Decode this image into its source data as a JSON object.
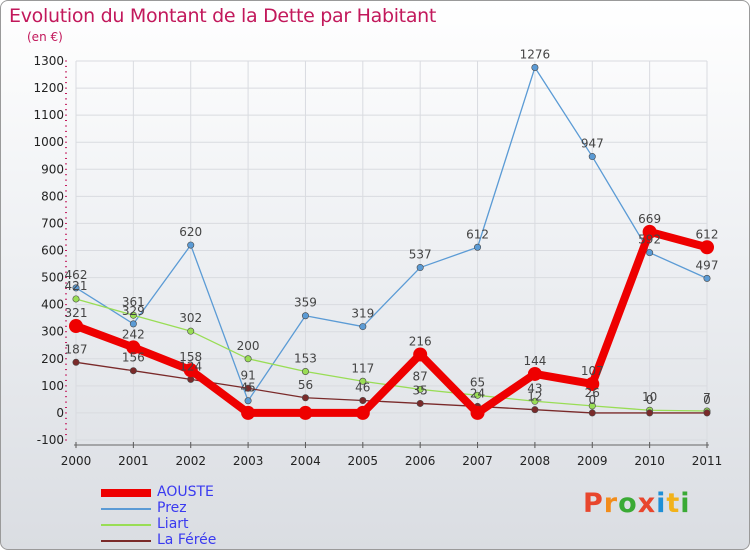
{
  "header": {
    "title": "Evolution du Montant de la Dette par Habitant",
    "subtitle": "(en €)"
  },
  "logo": {
    "text": "Proxiti",
    "colors": [
      "#e8462d",
      "#f28c1a",
      "#3aaa35",
      "#e8462d",
      "#1e8fd6",
      "#f2b21a",
      "#3aaa35"
    ]
  },
  "chart_data": {
    "type": "line",
    "x": [
      "2000",
      "2001",
      "2002",
      "2003",
      "2004",
      "2005",
      "2006",
      "2007",
      "2008",
      "2009",
      "2010",
      "2011"
    ],
    "ylim": [
      -100,
      1300
    ],
    "yticks": [
      -100,
      0,
      100,
      200,
      300,
      400,
      500,
      600,
      700,
      800,
      900,
      1000,
      1100,
      1200,
      1300
    ],
    "grid": true,
    "legend_position": "bottom-left",
    "series": [
      {
        "name": "AOUSTE",
        "color": "#ee0000",
        "width": 8,
        "values": [
          321,
          242,
          158,
          0,
          0,
          0,
          216,
          0,
          144,
          107,
          669,
          612
        ],
        "labels": [
          "321",
          "242",
          "158",
          "",
          "",
          "",
          "216",
          "",
          "144",
          "107",
          "669",
          "612"
        ]
      },
      {
        "name": "Prez",
        "color": "#5b9bd5",
        "width": 1.3,
        "values": [
          462,
          329,
          620,
          45,
          359,
          319,
          537,
          612,
          1276,
          947,
          592,
          497
        ],
        "labels": [
          "462",
          "329",
          "620",
          "45",
          "359",
          "319",
          "537",
          "612",
          "1276",
          "947",
          "592",
          "497"
        ]
      },
      {
        "name": "Liart",
        "color": "#99dd55",
        "width": 1.3,
        "values": [
          421,
          361,
          302,
          200,
          153,
          117,
          87,
          65,
          43,
          26,
          10,
          7
        ],
        "labels": [
          "421",
          "361",
          "302",
          "200",
          "153",
          "117",
          "87",
          "65",
          "43",
          "26",
          "10",
          "7"
        ]
      },
      {
        "name": "La Férée",
        "color": "#7a2a2a",
        "width": 1.3,
        "values": [
          187,
          156,
          124,
          91,
          56,
          46,
          35,
          24,
          12,
          0,
          0,
          0
        ],
        "labels": [
          "187",
          "156",
          "124",
          "91",
          "56",
          "46",
          "35",
          "24",
          "12",
          "0",
          "0",
          "0"
        ]
      }
    ]
  }
}
